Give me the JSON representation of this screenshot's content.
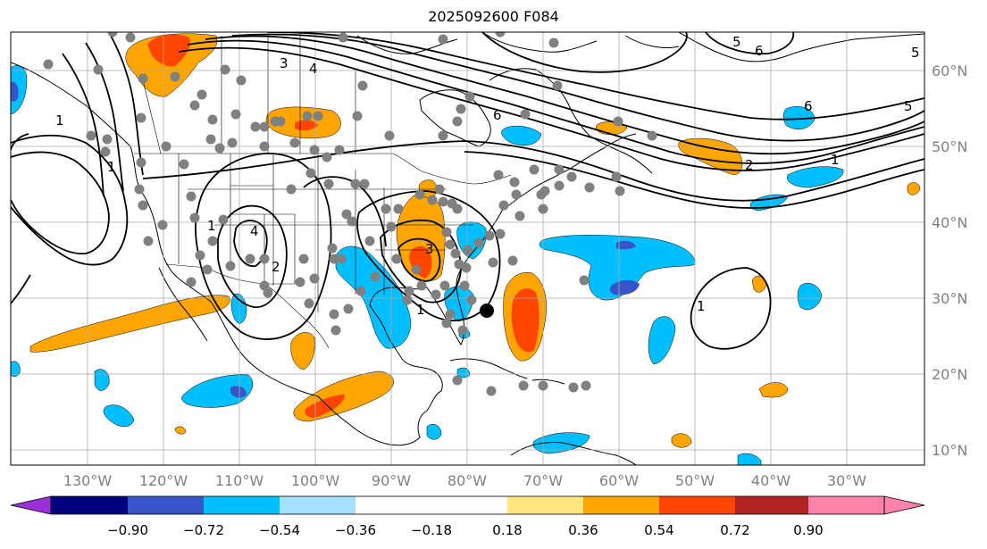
{
  "title": "2025092600 F084",
  "lon_labels": [
    "130°W",
    "120°W",
    "110°W",
    "100°W",
    "90°W",
    "80°W",
    "70°W",
    "60°W",
    "50°W",
    "40°W",
    "30°W"
  ],
  "lat_labels": [
    "60°N",
    "50°N",
    "40°N",
    "30°N",
    "20°N",
    "10°N"
  ],
  "colorbar": {
    "tick_labels": [
      "−0.90",
      "−0.72",
      "−0.54",
      "−0.36",
      "−0.18",
      "0.18",
      "0.36",
      "0.54",
      "0.72",
      "0.90"
    ],
    "colors": [
      "#9b30d9",
      "#000080",
      "#3755c8",
      "#00bfff",
      "#a8e0ff",
      "#ffffff",
      "#ffe680",
      "#ffa500",
      "#ff4500",
      "#b22222",
      "#ff82ab"
    ]
  },
  "contour_labels": [
    "3",
    "4",
    "5",
    "6",
    "5",
    "6",
    "5",
    "6",
    "1",
    "2",
    "1",
    "4",
    "3",
    "2",
    "1",
    "1",
    "1",
    "1"
  ],
  "colors": {
    "frame": "#000000",
    "grid": "#aaaaaa",
    "tick_label": "#808080",
    "station_dot": "#808080"
  }
}
